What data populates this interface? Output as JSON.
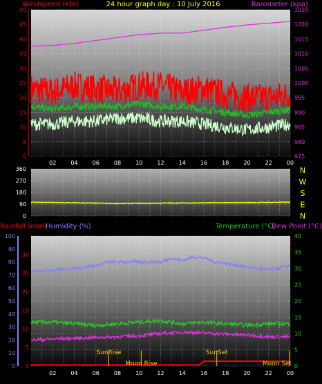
{
  "colors": {
    "windspeed": "#ff0000",
    "wind_avg": "#22bb22",
    "wind_low": "#ccffcc",
    "barometer": "#e030e0",
    "direction": "#ffff00",
    "rainfall": "#ff0000",
    "humidity": "#8080ff",
    "temperature": "#22cc22",
    "dewpoint": "#e030e0",
    "sun_moon": "#ffcc00",
    "axis_text": "#ffffff"
  },
  "chart_data": [
    {
      "type": "line",
      "title": "24 hour graph day : 10 July 2016",
      "left_label": "Windspeed (kts)",
      "right_label": "Barometer (kpa)",
      "x_ticks": [
        "02",
        "04",
        "06",
        "08",
        "10",
        "12",
        "14",
        "16",
        "18",
        "20",
        "22",
        "00"
      ],
      "y_left_ticks": [
        0,
        5,
        10,
        15,
        20,
        25,
        30,
        35,
        40,
        45,
        50
      ],
      "y_left_range": [
        0,
        50
      ],
      "y_right_ticks": [
        975,
        980,
        985,
        990,
        995,
        1000,
        1005,
        1010,
        1015,
        1020,
        1025
      ],
      "y_right_range": [
        975,
        1025
      ],
      "series": [
        {
          "key": "gust",
          "color_key": "windspeed",
          "x": [
            0,
            2,
            4,
            6,
            8,
            10,
            12,
            14,
            16,
            18,
            20,
            22,
            24
          ],
          "values": [
            23,
            22,
            24,
            23,
            22,
            24,
            24,
            22,
            23,
            21,
            20,
            20,
            21
          ],
          "spread": 5
        },
        {
          "key": "avg",
          "color_key": "wind_avg",
          "x": [
            0,
            2,
            4,
            6,
            8,
            10,
            12,
            14,
            16,
            18,
            20,
            22,
            24
          ],
          "values": [
            17,
            16,
            17,
            17,
            17,
            18,
            17,
            17,
            16,
            15,
            14,
            15,
            16
          ],
          "spread": 1.2
        },
        {
          "key": "low",
          "color_key": "wind_low",
          "x": [
            0,
            2,
            4,
            6,
            8,
            10,
            12,
            14,
            16,
            18,
            20,
            22,
            24
          ],
          "values": [
            11,
            11,
            12,
            12,
            13,
            13,
            12,
            12,
            11,
            10,
            9,
            10,
            11
          ],
          "spread": 2.2
        },
        {
          "key": "baro",
          "color_key": "barometer",
          "axis": "right",
          "x": [
            0,
            2,
            4,
            6,
            8,
            10,
            12,
            14,
            16,
            18,
            20,
            22,
            24
          ],
          "values": [
            1012.5,
            1012.8,
            1013.5,
            1014.5,
            1015.5,
            1016.5,
            1017,
            1017,
            1018,
            1019,
            1019.8,
            1020.4,
            1021
          ],
          "spread": 0
        }
      ]
    },
    {
      "type": "line",
      "y_left_ticks": [
        0,
        90,
        180,
        270,
        360
      ],
      "y_left_range": [
        0,
        360
      ],
      "compass_labels": [
        "N",
        "W",
        "S",
        "E",
        "N"
      ],
      "series": [
        {
          "key": "direction",
          "color_key": "direction",
          "x": [
            0,
            4,
            8,
            12,
            16,
            20,
            24
          ],
          "values": [
            105,
            100,
            95,
            98,
            100,
            102,
            105
          ],
          "spread": 3
        }
      ]
    },
    {
      "type": "line",
      "labels": {
        "rainfall": "Rainfall (mm)",
        "humidity": "Humidity (%)",
        "temperature": "Temperature (°C)",
        "dewpoint": "Dew Point (°C)"
      },
      "x_ticks": [
        "02",
        "04",
        "06",
        "08",
        "10",
        "12",
        "14",
        "16",
        "18",
        "20",
        "22",
        "00"
      ],
      "humidity_ticks": [
        0,
        10,
        20,
        30,
        40,
        50,
        60,
        70,
        80,
        90,
        100
      ],
      "humidity_range": [
        0,
        100
      ],
      "rain_ticks": [
        0,
        5,
        10,
        15,
        20,
        25,
        30
      ],
      "rain_range": [
        0,
        35
      ],
      "temp_ticks": [
        0,
        5,
        10,
        15,
        20,
        25,
        30,
        35,
        40
      ],
      "temp_range": [
        0,
        40
      ],
      "series": [
        {
          "key": "humidity",
          "color_key": "humidity",
          "axis": "humidity",
          "x": [
            0,
            2,
            4,
            6,
            7,
            8,
            10,
            12,
            13,
            14,
            15,
            16,
            17,
            18,
            20,
            22,
            24
          ],
          "values": [
            73,
            74,
            75,
            77,
            80,
            80,
            80,
            80,
            83,
            81,
            84,
            83,
            80,
            79,
            76,
            74,
            77
          ],
          "spread": 1.2
        },
        {
          "key": "temperature",
          "color_key": "temperature",
          "axis": "temp",
          "x": [
            0,
            2,
            4,
            6,
            8,
            10,
            12,
            14,
            16,
            18,
            20,
            22,
            24
          ],
          "values": [
            13.5,
            13.5,
            13,
            12.5,
            13,
            13.5,
            14,
            13,
            13.5,
            13,
            12.5,
            13,
            13
          ],
          "spread": 0.6
        },
        {
          "key": "dewpoint",
          "color_key": "dewpoint",
          "axis": "temp",
          "x": [
            0,
            2,
            4,
            6,
            8,
            10,
            12,
            14,
            16,
            18,
            20,
            22,
            24
          ],
          "values": [
            8,
            8.3,
            8.5,
            8.8,
            9,
            9.3,
            10,
            10.4,
            10.2,
            9.8,
            9.5,
            9,
            9
          ],
          "spread": 0.5
        },
        {
          "key": "rain",
          "color_key": "rainfall",
          "axis": "rain",
          "x": [
            0,
            15.7,
            15.8,
            24
          ],
          "values": [
            0.3,
            0.3,
            1.3,
            1.3
          ],
          "spread": 0
        }
      ],
      "markers": [
        {
          "label": "SunRise",
          "x": 7.2,
          "label_level": 4
        },
        {
          "label": "Moon Rise",
          "x": 10.2,
          "label_level": 0.6
        },
        {
          "label": "SunSet",
          "x": 17.2,
          "label_level": 4
        },
        {
          "label": "Moon Set",
          "x": 24.0,
          "label_level": 0.6
        }
      ]
    }
  ]
}
